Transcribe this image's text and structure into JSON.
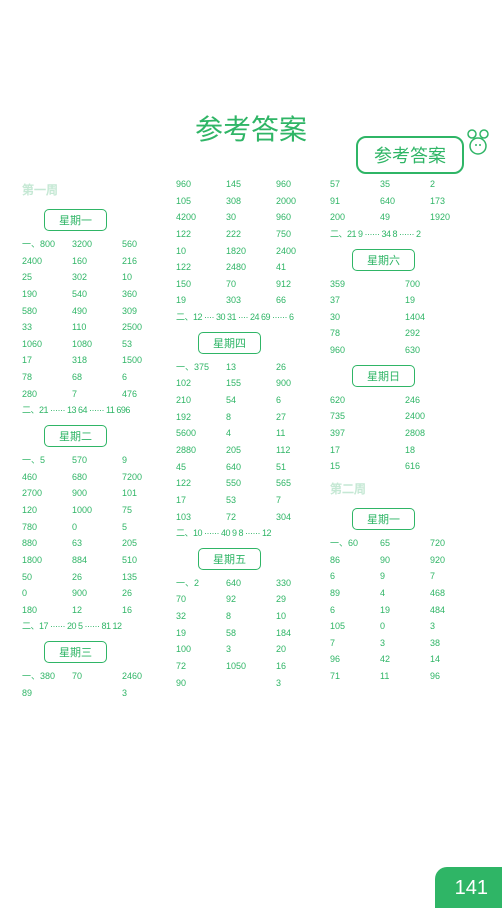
{
  "header": "参考答案",
  "title": "参考答案",
  "pageNum": "141",
  "weeks": {
    "w1": "第一周",
    "w2": "第二周"
  },
  "days": {
    "mon": "星期一",
    "tue": "星期二",
    "wed": "星期三",
    "thu": "星期四",
    "fri": "星期五",
    "sat": "星期六",
    "sun": "星期日"
  },
  "c1": {
    "mon": [
      [
        "一、800",
        "3200",
        "560"
      ],
      [
        "2400",
        "160",
        "216"
      ],
      [
        "25",
        "302",
        "10"
      ],
      [
        "190",
        "540",
        "360"
      ],
      [
        "580",
        "490",
        "309"
      ],
      [
        "33",
        "110",
        "2500"
      ],
      [
        "1060",
        "1080",
        "53"
      ],
      [
        "17",
        "318",
        "1500"
      ],
      [
        "78",
        "68",
        "6"
      ],
      [
        "280",
        "7",
        "476"
      ]
    ],
    "monLine": "二、21 ······ 13 64 ······ 11 696",
    "tue": [
      [
        "一、5",
        "570",
        "9"
      ],
      [
        "460",
        "680",
        "7200"
      ],
      [
        "2700",
        "900",
        "101"
      ],
      [
        "120",
        "1000",
        "75"
      ],
      [
        "780",
        "0",
        "5"
      ],
      [
        "880",
        "63",
        "205"
      ],
      [
        "1800",
        "884",
        "510"
      ],
      [
        "50",
        "26",
        "135"
      ],
      [
        "0",
        "900",
        "26"
      ],
      [
        "180",
        "12",
        "16"
      ]
    ],
    "tueLine": "二、17 ······ 20 5 ······ 81   12",
    "wed": [
      [
        "一、380",
        "70",
        "2460"
      ],
      [
        "89",
        "",
        "3"
      ]
    ]
  },
  "c2": {
    "top": [
      [
        "960",
        "145",
        "960"
      ],
      [
        "105",
        "308",
        "2000"
      ],
      [
        "4200",
        "30",
        "960"
      ],
      [
        "122",
        "222",
        "750"
      ],
      [
        "10",
        "1820",
        "2400"
      ],
      [
        "122",
        "2480",
        "41"
      ],
      [
        "150",
        "70",
        "912"
      ],
      [
        "19",
        "303",
        "66"
      ]
    ],
    "topLine": "二、12 ···· 30 31 ···· 24   69 ······ 6",
    "thu": [
      [
        "一、375",
        "13",
        "26"
      ],
      [
        "102",
        "155",
        "900"
      ],
      [
        "210",
        "54",
        "6"
      ],
      [
        "192",
        "8",
        "27"
      ],
      [
        "5600",
        "4",
        "11"
      ],
      [
        "2880",
        "205",
        "112"
      ],
      [
        "45",
        "640",
        "51"
      ],
      [
        "122",
        "550",
        "565"
      ],
      [
        "17",
        "53",
        "7"
      ],
      [
        "103",
        "72",
        "304"
      ]
    ],
    "thuLine": "二、10 ······ 40 9              8 ······ 12",
    "fri": [
      [
        "一、2",
        "640",
        "330"
      ],
      [
        "70",
        "92",
        "29"
      ],
      [
        "32",
        "8",
        "10"
      ],
      [
        "19",
        "58",
        "184"
      ],
      [
        "100",
        "3",
        "20"
      ],
      [
        "72",
        "1050",
        "16"
      ],
      [
        "90",
        "",
        "3"
      ]
    ]
  },
  "c3": {
    "top": [
      [
        "57",
        "35",
        "2"
      ],
      [
        "91",
        "640",
        "173"
      ],
      [
        "200",
        "49",
        "1920"
      ]
    ],
    "topLine": "二、21         9 ······ 34    8 ······ 2",
    "sat": [
      [
        "359",
        "700"
      ],
      [
        "37",
        "19"
      ],
      [
        "30",
        "1404"
      ],
      [
        "78",
        "292"
      ],
      [
        "960",
        "630"
      ]
    ],
    "sun": [
      [
        "620",
        "246"
      ],
      [
        "735",
        "2400"
      ],
      [
        "397",
        "2808"
      ],
      [
        "17",
        "18"
      ],
      [
        "15",
        "616"
      ]
    ],
    "mon2": [
      [
        "一、60",
        "65",
        "720"
      ],
      [
        "86",
        "90",
        "920"
      ],
      [
        "6",
        "9",
        "7"
      ],
      [
        "89",
        "4",
        "468"
      ],
      [
        "6",
        "19",
        "484"
      ],
      [
        "105",
        "0",
        "3"
      ],
      [
        "7",
        "3",
        "38"
      ],
      [
        "96",
        "42",
        "14"
      ],
      [
        "71",
        "11",
        "96"
      ]
    ]
  }
}
